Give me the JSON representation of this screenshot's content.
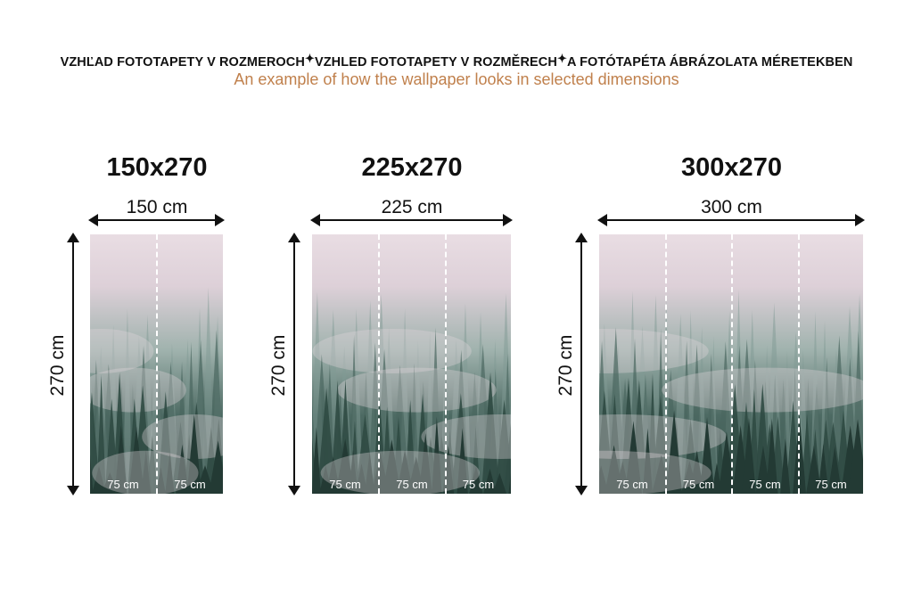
{
  "header": {
    "title_parts": [
      "VZHĽAD FOTOTAPETY V ROZMEROCH",
      "VZHLED FOTOTAPETY V ROZMĚRECH",
      "A FOTÓTAPÉTA ÁBRÁZOLATA MÉRETEKBEN"
    ],
    "separator": "✦",
    "subtitle": "An example of how the wallpaper looks in selected dimensions"
  },
  "colors": {
    "subtitle": "#c0804c",
    "sky": "#e9dde3",
    "forest": "#2c4640"
  },
  "variants": [
    {
      "title": "150x270",
      "width_label": "150 cm",
      "height_label": "270 cm",
      "strips": [
        "75 cm",
        "75 cm"
      ]
    },
    {
      "title": "225x270",
      "width_label": "225 cm",
      "height_label": "270 cm",
      "strips": [
        "75 cm",
        "75 cm",
        "75 cm"
      ]
    },
    {
      "title": "300x270",
      "width_label": "300 cm",
      "height_label": "270 cm",
      "strips": [
        "75 cm",
        "75 cm",
        "75 cm",
        "75 cm"
      ]
    }
  ]
}
